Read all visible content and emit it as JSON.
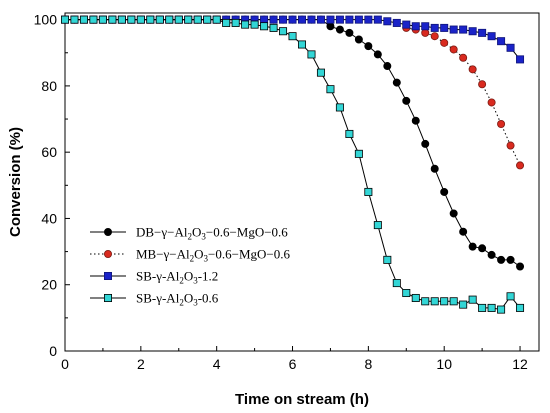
{
  "chart_data": {
    "type": "line",
    "xlabel": "Time on stream (h)",
    "ylabel": "Conversion (%)",
    "xlim": [
      0,
      12.5
    ],
    "ylim": [
      0,
      102
    ],
    "xticks": [
      "0",
      "2",
      "4",
      "6",
      "8",
      "10",
      "12"
    ],
    "yticks": [
      "0",
      "20",
      "40",
      "60",
      "80",
      "100"
    ],
    "legend_position": "center-left",
    "series": [
      {
        "name": "DB−γ−Al2O3−0.6−MgO−0.6",
        "legend_parts": [
          {
            "t": "DB−γ−Al"
          },
          {
            "t": "2",
            "sub": true
          },
          {
            "t": "O"
          },
          {
            "t": "3",
            "sub": true
          },
          {
            "t": "−0.6−MgO−0.6"
          }
        ],
        "color": "#000000",
        "edge": "#000000",
        "marker": "circle",
        "dash": "",
        "x": [
          0,
          0.25,
          0.5,
          0.75,
          1,
          1.25,
          1.5,
          1.75,
          2,
          2.25,
          2.5,
          2.75,
          3,
          3.25,
          3.5,
          3.75,
          4,
          4.25,
          4.5,
          4.75,
          5,
          5.25,
          5.5,
          5.75,
          6,
          6.25,
          6.5,
          6.75,
          7,
          7.25,
          7.5,
          7.75,
          8,
          8.25,
          8.5,
          8.75,
          9,
          9.25,
          9.5,
          9.75,
          10,
          10.25,
          10.5,
          10.75,
          11,
          11.25,
          11.5,
          11.75,
          12
        ],
        "y": [
          100,
          100,
          100,
          100,
          100,
          100,
          100,
          100,
          100,
          100,
          100,
          100,
          100,
          100,
          100,
          100,
          100,
          100,
          100,
          100,
          100,
          100,
          100,
          100,
          100,
          100,
          100,
          100,
          98,
          97,
          96,
          94,
          92,
          89.5,
          86,
          81,
          75.5,
          69.5,
          62.5,
          55,
          48,
          41.5,
          36,
          31.5,
          31,
          29,
          27.5,
          27.5,
          25.5
        ]
      },
      {
        "name": "MB−γ−Al2O3−0.6−MgO−0.6",
        "legend_parts": [
          {
            "t": "MB−γ−Al"
          },
          {
            "t": "2",
            "sub": true
          },
          {
            "t": "O"
          },
          {
            "t": "3",
            "sub": true
          },
          {
            "t": "−0.6−MgO−0.6"
          }
        ],
        "color": "#d92a1f",
        "edge": "#7a1a12",
        "marker": "circle",
        "dash": "1.5,2.5",
        "x": [
          9,
          9.25,
          9.5,
          9.75,
          10,
          10.25,
          10.5,
          10.75,
          11,
          11.25,
          11.5,
          11.75,
          12
        ],
        "y": [
          97.5,
          97,
          96,
          95,
          93,
          91,
          88.5,
          85,
          80.5,
          75,
          68.5,
          62,
          56
        ]
      },
      {
        "name": "SB-γ-Al2O3-1.2",
        "legend_parts": [
          {
            "t": "SB-γ-Al"
          },
          {
            "t": "2",
            "sub": true
          },
          {
            "t": "O"
          },
          {
            "t": "3",
            "sub": true
          },
          {
            "t": "-1.2"
          }
        ],
        "color": "#1a23c8",
        "edge": "#10157a",
        "marker": "square",
        "dash": "",
        "x": [
          0,
          0.25,
          0.5,
          0.75,
          1,
          1.25,
          1.5,
          1.75,
          2,
          2.25,
          2.5,
          2.75,
          3,
          3.25,
          3.5,
          3.75,
          4,
          4.25,
          4.5,
          4.75,
          5,
          5.25,
          5.5,
          5.75,
          6,
          6.25,
          6.5,
          6.75,
          7,
          7.25,
          7.5,
          7.75,
          8,
          8.25,
          8.5,
          8.75,
          9,
          9.25,
          9.5,
          9.75,
          10,
          10.25,
          10.5,
          10.75,
          11,
          11.25,
          11.5,
          11.75,
          12
        ],
        "y": [
          100,
          100,
          100,
          100,
          100,
          100,
          100,
          100,
          100,
          100,
          100,
          100,
          100,
          100,
          100,
          100,
          100,
          100,
          100,
          100,
          100,
          100,
          100,
          100,
          100,
          100,
          100,
          100,
          100,
          100,
          100,
          100,
          100,
          100,
          99.5,
          99,
          98.5,
          98,
          98,
          97.5,
          97.5,
          97,
          97,
          96.5,
          96,
          95,
          93.5,
          91.5,
          88
        ]
      },
      {
        "name": "SB-γ-Al2O3-0.6",
        "legend_parts": [
          {
            "t": "SB-γ-Al"
          },
          {
            "t": "2",
            "sub": true
          },
          {
            "t": "O"
          },
          {
            "t": "3",
            "sub": true
          },
          {
            "t": "-0.6"
          }
        ],
        "color": "#33d6d6",
        "edge": "#000000",
        "marker": "square",
        "dash": "",
        "x": [
          0,
          0.25,
          0.5,
          0.75,
          1,
          1.25,
          1.5,
          1.75,
          2,
          2.25,
          2.5,
          2.75,
          3,
          3.25,
          3.5,
          3.75,
          4,
          4.25,
          4.5,
          4.75,
          5,
          5.25,
          5.5,
          5.75,
          6,
          6.25,
          6.5,
          6.75,
          7,
          7.25,
          7.5,
          7.75,
          8,
          8.25,
          8.5,
          8.75,
          9,
          9.25,
          9.5,
          9.75,
          10,
          10.25,
          10.5,
          10.75,
          11,
          11.25,
          11.5,
          11.75,
          12
        ],
        "y": [
          100,
          100,
          100,
          100,
          100,
          100,
          100,
          100,
          100,
          100,
          100,
          100,
          100,
          100,
          100,
          100,
          100,
          99,
          99,
          98.5,
          98.5,
          98,
          97.5,
          96.5,
          95,
          92.5,
          89.5,
          84,
          79,
          73.5,
          65.5,
          59.5,
          48,
          38,
          27.5,
          20.5,
          17.5,
          16,
          15,
          15,
          15,
          15,
          14,
          15.5,
          13,
          13,
          12.5,
          16.5,
          13
        ]
      }
    ]
  }
}
